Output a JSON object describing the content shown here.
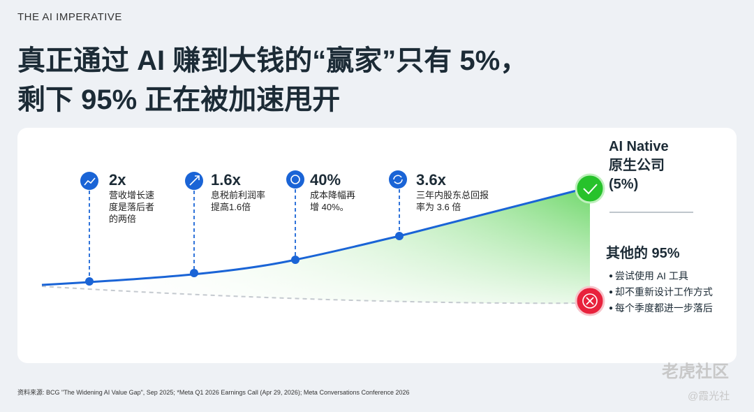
{
  "header": {
    "kicker": "THE AI IMPERATIVE",
    "title_lines": [
      "真正通过 AI 赚到大钱的“赢家”只有 5%，",
      "剩下 95% 正在被加速甩开"
    ]
  },
  "milestones": [
    {
      "metric": "2x",
      "desc": [
        "营收增长速",
        "度是落后者",
        "的两倍"
      ]
    },
    {
      "metric": "1.6x",
      "desc": [
        "息税前利润率",
        "提高1.6倍"
      ]
    },
    {
      "metric": "40%",
      "desc": [
        "成本降幅再",
        "增 40%。"
      ]
    },
    {
      "metric": "3.6x",
      "desc": [
        "三年内股东总回报",
        "率为 3.6 倍"
      ]
    }
  ],
  "winner": {
    "lines": [
      "AI Native",
      "原生公司",
      "(5%)"
    ]
  },
  "others": {
    "title": "其他的 95%",
    "bullets": [
      "尝试使用 AI 工具",
      "却不重新设计工作方式",
      "每个季度都进一步落后"
    ]
  },
  "footer": {
    "source": "资料来源: BCG \"The Widening AI Value Gap\", Sep 2025; *Meta Q1 2026 Earnings Call (Apr 29, 2026); Meta Conversations Conference 2026"
  },
  "watermark": {
    "main": "老虎社区",
    "handle": "@霞光社"
  }
}
